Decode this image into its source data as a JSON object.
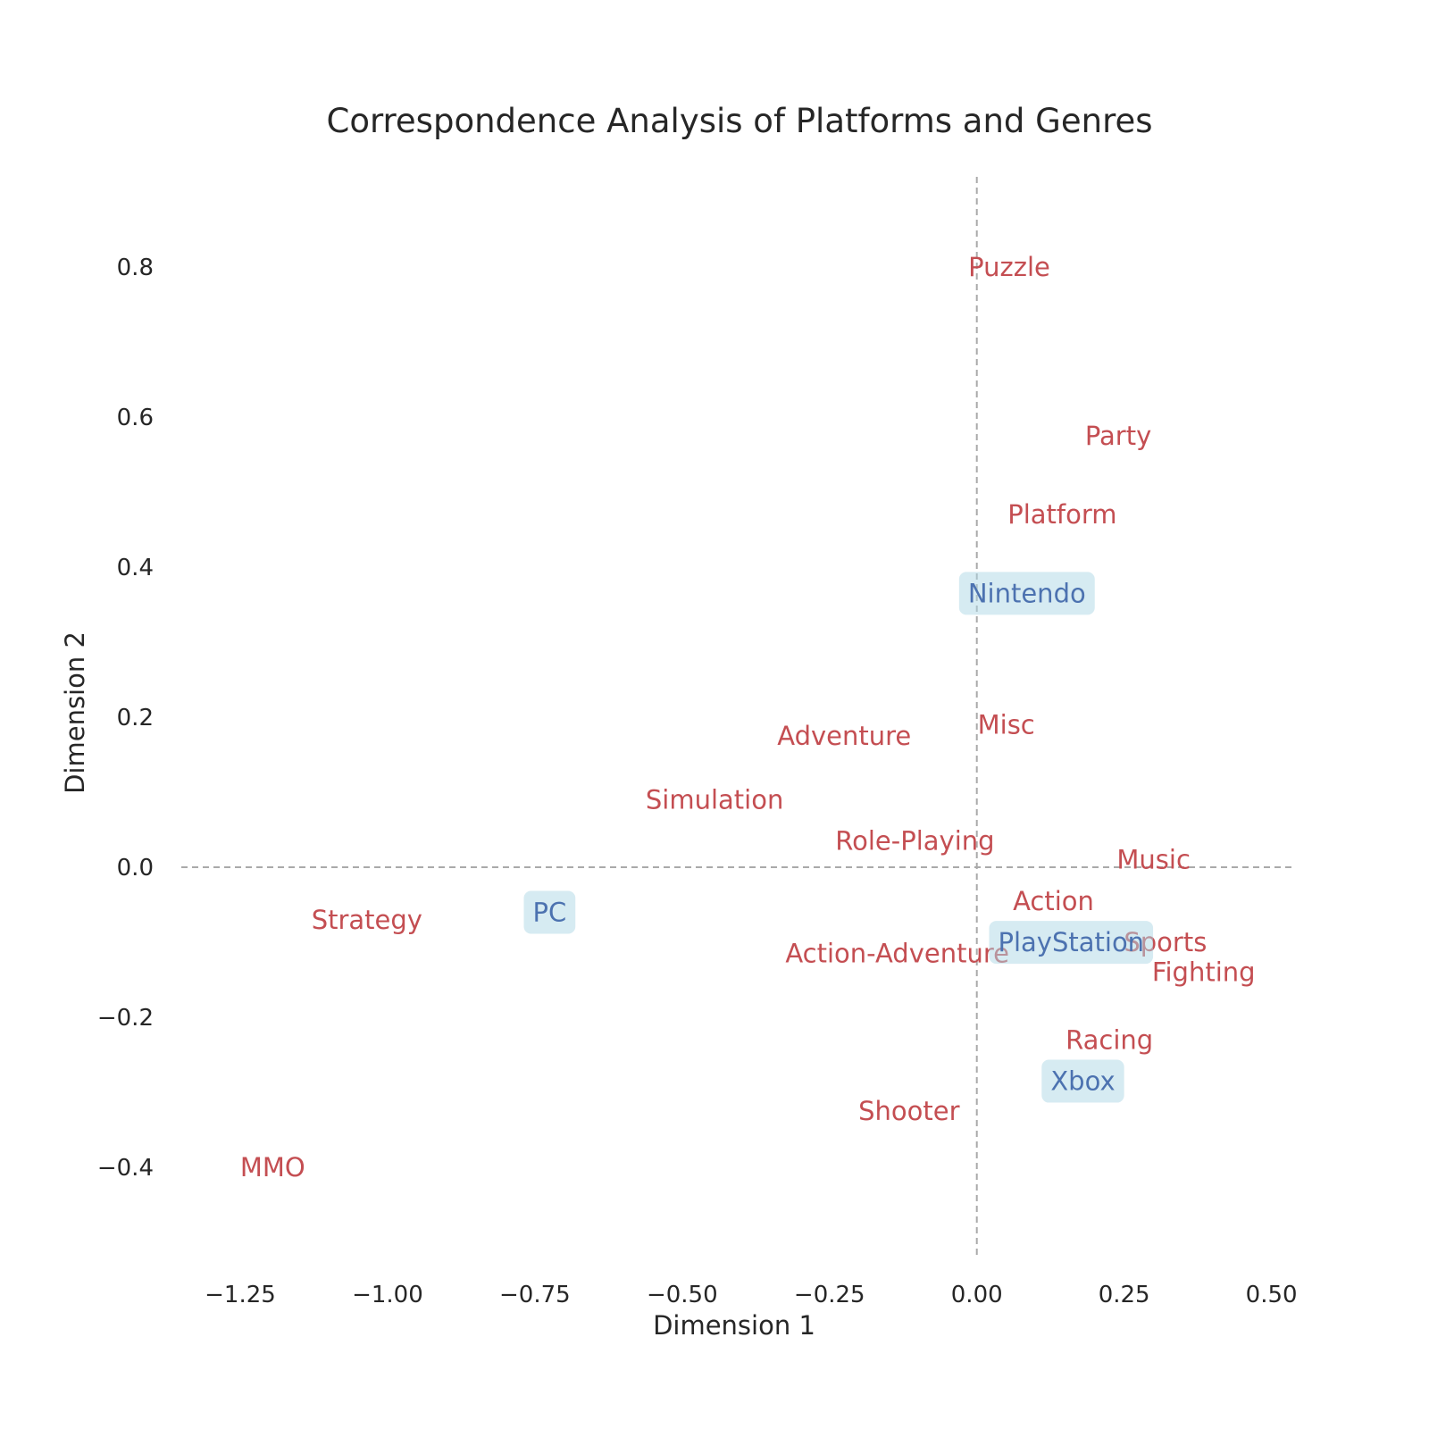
{
  "chart_data": {
    "type": "scatter",
    "title": "Correspondence Analysis of Platforms and Genres",
    "xlabel": "Dimension 1",
    "ylabel": "Dimension 2",
    "xlim": [
      -1.35,
      0.54
    ],
    "ylim": [
      -0.52,
      0.92
    ],
    "xticks": [
      -1.25,
      -1.0,
      -0.75,
      -0.5,
      -0.25,
      0.0,
      0.25,
      0.5
    ],
    "xtick_labels": [
      "−1.25",
      "−1.00",
      "−0.75",
      "−0.50",
      "−0.25",
      "0.00",
      "0.25",
      "0.50"
    ],
    "yticks": [
      -0.4,
      -0.2,
      0.0,
      0.2,
      0.4,
      0.6,
      0.8
    ],
    "ytick_labels": [
      "−0.4",
      "−0.2",
      "0.0",
      "0.2",
      "0.4",
      "0.6",
      "0.8"
    ],
    "grid": false,
    "reference_lines": [
      {
        "axis": "x",
        "value": 0.0,
        "style": "dashed",
        "color": "#aaaaaa"
      },
      {
        "axis": "y",
        "value": 0.0,
        "style": "dashed",
        "color": "#aaaaaa"
      }
    ],
    "colors": {
      "genre_text": "#c44e52",
      "platform_text": "#4c72b0",
      "platform_box": "#add8e6",
      "reference_line": "#aaaaaa"
    },
    "series": [
      {
        "role": "genres",
        "points": [
          {
            "label": "Puzzle",
            "x": 0.055,
            "y": 0.8
          },
          {
            "label": "Party",
            "x": 0.24,
            "y": 0.575
          },
          {
            "label": "Platform",
            "x": 0.145,
            "y": 0.47
          },
          {
            "label": "Misc",
            "x": 0.05,
            "y": 0.19
          },
          {
            "label": "Adventure",
            "x": -0.225,
            "y": 0.175
          },
          {
            "label": "Simulation",
            "x": -0.445,
            "y": 0.09
          },
          {
            "label": "Role-Playing",
            "x": -0.105,
            "y": 0.035
          },
          {
            "label": "Music",
            "x": 0.3,
            "y": 0.01
          },
          {
            "label": "Action",
            "x": 0.13,
            "y": -0.045
          },
          {
            "label": "Strategy",
            "x": -1.035,
            "y": -0.07
          },
          {
            "label": "Action-Adventure",
            "x": -0.135,
            "y": -0.115
          },
          {
            "label": "Sports",
            "x": 0.32,
            "y": -0.1
          },
          {
            "label": "Fighting",
            "x": 0.385,
            "y": -0.14
          },
          {
            "label": "Racing",
            "x": 0.225,
            "y": -0.23
          },
          {
            "label": "Shooter",
            "x": -0.115,
            "y": -0.325
          },
          {
            "label": "MMO",
            "x": -1.195,
            "y": -0.4
          }
        ]
      },
      {
        "role": "platforms",
        "points": [
          {
            "label": "Nintendo",
            "x": 0.085,
            "y": 0.365
          },
          {
            "label": "PC",
            "x": -0.725,
            "y": -0.06
          },
          {
            "label": "PlayStation",
            "x": 0.16,
            "y": -0.1
          },
          {
            "label": "Xbox",
            "x": 0.18,
            "y": -0.285
          }
        ]
      }
    ]
  }
}
